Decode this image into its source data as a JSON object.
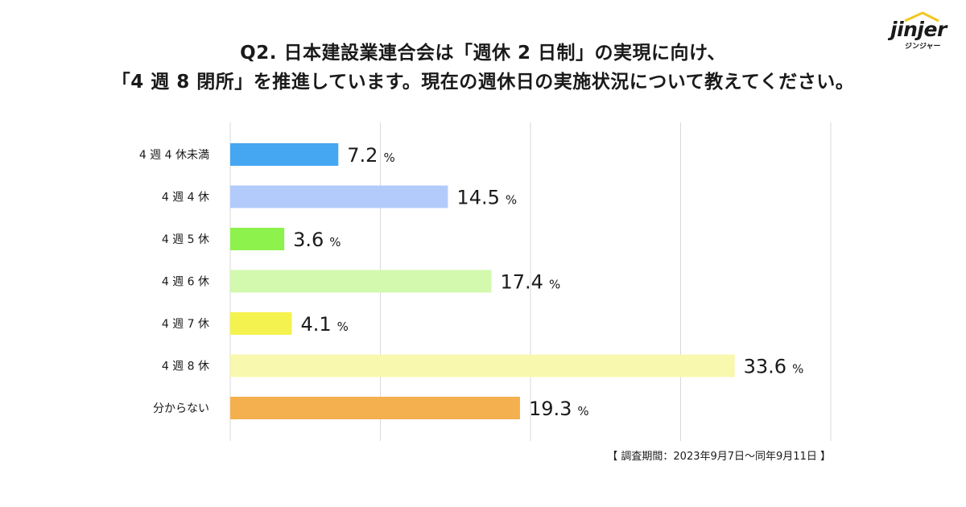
{
  "title": {
    "line1": "Q2. 日本建設業連合会は「週休 2 日制」の実現に向け、",
    "line2": "「4 週 8 閉所」を推進しています。現在の週休日の実施状況について教えてください。"
  },
  "logo": {
    "word": "jinjer",
    "kana": "ジンジャー",
    "accent": "#f2c81e"
  },
  "chart_data": {
    "type": "bar",
    "orientation": "horizontal",
    "categories": [
      "4 週 4 休未満",
      "4 週 4 休",
      "4 週 5 休",
      "4 週 6 休",
      "4 週 7 休",
      "4 週 8 休",
      "分からない"
    ],
    "values": [
      7.2,
      14.5,
      3.6,
      17.4,
      4.1,
      33.6,
      19.3
    ],
    "value_labels": [
      "7.2",
      "14.5",
      "3.6",
      "17.4",
      "4.1",
      "33.6",
      "19.3"
    ],
    "unit": "%",
    "colors": [
      "#45a6f2",
      "#b3cbfb",
      "#8ef24d",
      "#d2f9ad",
      "#f4f24e",
      "#f8f8ae",
      "#f4b04e"
    ],
    "xlim": [
      0,
      40
    ],
    "gridlines": [
      0,
      10,
      20,
      30,
      40
    ],
    "grid_color": "#d9d9d9",
    "xlabel": "",
    "ylabel": ""
  },
  "footnote": "【 調査期間：2023年9月7日〜同年9月11日 】"
}
